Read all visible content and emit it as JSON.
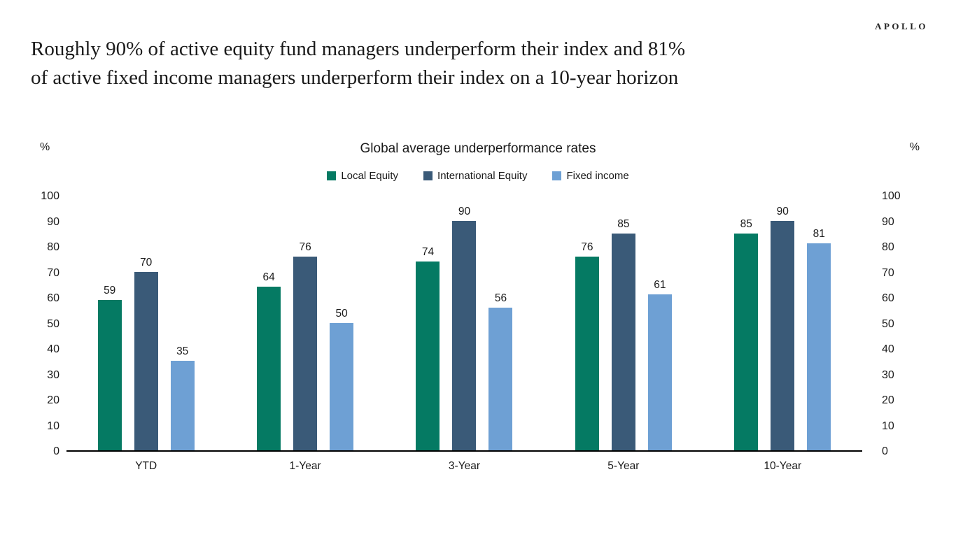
{
  "brand": {
    "logo": "APOLLO"
  },
  "headline": {
    "line1": "Roughly 90% of active equity fund managers underperform their index and 81%",
    "line2": "of active fixed income managers underperform their index on a 10-year horizon"
  },
  "chart_data": {
    "type": "bar",
    "title": "Global average underperformance rates",
    "axis_unit": "%",
    "categories": [
      "YTD",
      "1-Year",
      "3-Year",
      "5-Year",
      "10-Year"
    ],
    "series": [
      {
        "name": "Local Equity",
        "color": "#057A63",
        "values": [
          59,
          64,
          74,
          76,
          85
        ]
      },
      {
        "name": "International Equity",
        "color": "#3A5A78",
        "values": [
          70,
          76,
          90,
          85,
          90
        ]
      },
      {
        "name": "Fixed income",
        "color": "#6EA0D4",
        "values": [
          35,
          50,
          56,
          61,
          81
        ]
      }
    ],
    "ylim": [
      0,
      100
    ],
    "y_ticks": [
      100,
      90,
      80,
      70,
      60,
      50,
      40,
      30,
      20,
      10,
      0
    ],
    "grid": false,
    "legend_position": "top-center",
    "dual_axis": true,
    "axis_line_color": "#000000",
    "text_color": "#1a1a1a"
  }
}
